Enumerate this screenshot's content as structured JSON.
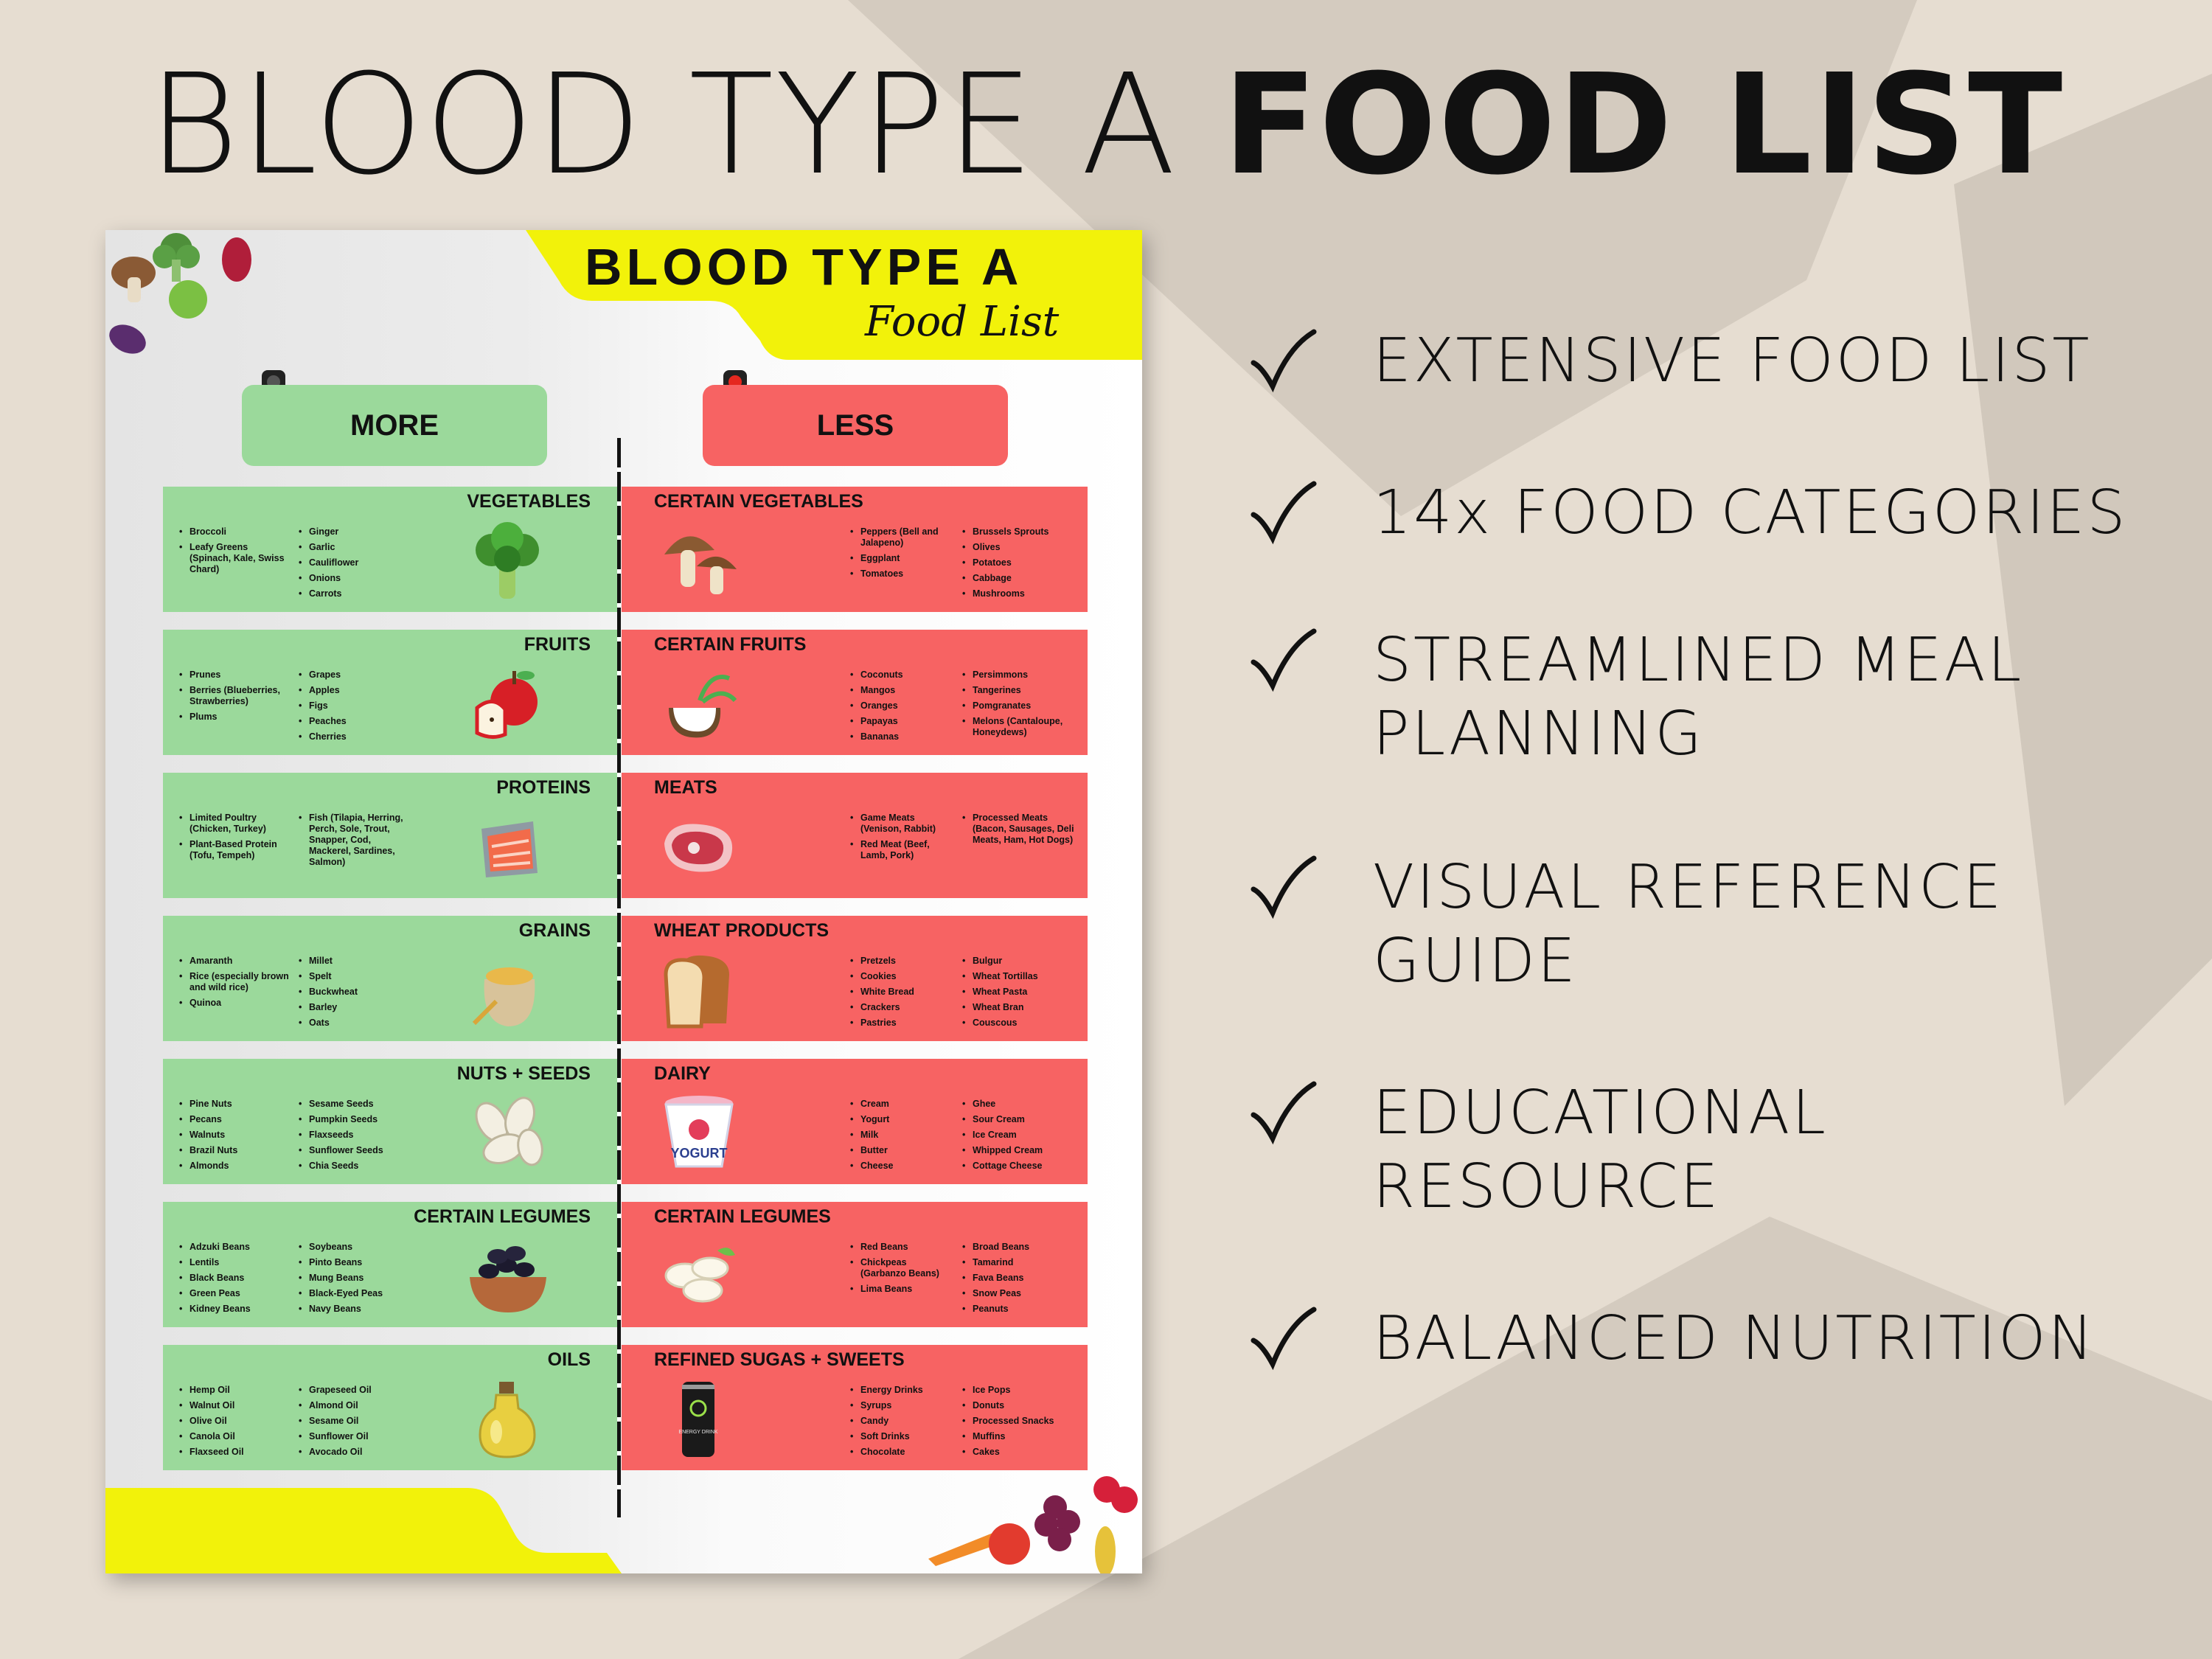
{
  "headline": {
    "light": "BLOOD TYPE A ",
    "bold": "FOOD LIST"
  },
  "poster": {
    "title": "BLOOD TYPE A",
    "subtitle": "Food List",
    "more_label": "MORE",
    "less_label": "LESS",
    "more": [
      {
        "title": "VEGETABLES",
        "icon": "broccoli-icon",
        "col1": [
          "Broccoli",
          "Leafy Greens (Spinach, Kale, Swiss Chard)"
        ],
        "col2": [
          "Ginger",
          "Garlic",
          "Cauliflower",
          "Onions",
          "Carrots"
        ]
      },
      {
        "title": "FRUITS",
        "icon": "apple-icon",
        "col1": [
          "Prunes",
          "Berries (Blueberries, Strawberries)",
          "Plums"
        ],
        "col2": [
          "Grapes",
          "Apples",
          "Figs",
          "Peaches",
          "Cherries"
        ]
      },
      {
        "title": "PROTEINS",
        "icon": "salmon-icon",
        "col1": [
          "Limited Poultry (Chicken, Turkey)",
          "Plant-Based Protein (Tofu, Tempeh)"
        ],
        "col2": [
          "Fish (Tilapia, Herring, Perch, Sole, Trout, Snapper, Cod, Mackerel, Sardines, Salmon)"
        ]
      },
      {
        "title": "GRAINS",
        "icon": "grain-sack-icon",
        "col1": [
          "Amaranth",
          "Rice (especially brown and wild rice)",
          "Quinoa"
        ],
        "col2": [
          "Millet",
          "Spelt",
          "Buckwheat",
          "Barley",
          "Oats"
        ]
      },
      {
        "title": "NUTS + SEEDS",
        "icon": "seeds-icon",
        "col1": [
          "Pine Nuts",
          "Pecans",
          "Walnuts",
          "Brazil Nuts",
          "Almonds"
        ],
        "col2": [
          "Sesame Seeds",
          "Pumpkin Seeds",
          "Flaxseeds",
          "Sunflower Seeds",
          "Chia Seeds"
        ]
      },
      {
        "title": "CERTAIN LEGUMES",
        "icon": "beans-bowl-icon",
        "col1": [
          "Adzuki Beans",
          "Lentils",
          "Black Beans",
          "Green Peas",
          "Kidney Beans"
        ],
        "col2": [
          "Soybeans",
          "Pinto Beans",
          "Mung Beans",
          "Black-Eyed Peas",
          "Navy Beans"
        ]
      },
      {
        "title": "OILS",
        "icon": "oil-bottle-icon",
        "col1": [
          "Hemp Oil",
          "Walnut Oil",
          "Olive Oil",
          "Canola Oil",
          "Flaxseed Oil"
        ],
        "col2": [
          "Grapeseed Oil",
          "Almond Oil",
          "Sesame Oil",
          "Sunflower Oil",
          "Avocado Oil"
        ]
      }
    ],
    "less": [
      {
        "title": "CERTAIN VEGETABLES",
        "icon": "mushroom-icon",
        "col1": [
          "Peppers (Bell and Jalapeno)",
          "Eggplant",
          "Tomatoes"
        ],
        "col2": [
          "Brussels Sprouts",
          "Olives",
          "Potatoes",
          "Cabbage",
          "Mushrooms"
        ]
      },
      {
        "title": "CERTAIN FRUITS",
        "icon": "coconut-icon",
        "col1": [
          "Coconuts",
          "Mangos",
          "Oranges",
          "Papayas",
          "Bananas"
        ],
        "col2": [
          "Persimmons",
          "Tangerines",
          "Pomgranates",
          "Melons (Cantaloupe, Honeydews)"
        ]
      },
      {
        "title": "MEATS",
        "icon": "steak-icon",
        "col1": [
          "Game Meats (Venison, Rabbit)",
          "Red Meat (Beef, Lamb, Pork)"
        ],
        "col2": [
          "Processed Meats (Bacon, Sausages, Deli Meats, Ham, Hot Dogs)"
        ]
      },
      {
        "title": "WHEAT PRODUCTS",
        "icon": "bread-icon",
        "col1": [
          "Pretzels",
          "Cookies",
          "White Bread",
          "Crackers",
          "Pastries"
        ],
        "col2": [
          "Bulgur",
          "Wheat Tortillas",
          "Wheat Pasta",
          "Wheat Bran",
          "Couscous"
        ]
      },
      {
        "title": "DAIRY",
        "icon": "yogurt-icon",
        "icon_text": "YOGURT",
        "col1": [
          "Cream",
          "Yogurt",
          "Milk",
          "Butter",
          "Cheese"
        ],
        "col2": [
          "Ghee",
          "Sour Cream",
          "Ice Cream",
          "Whipped Cream",
          "Cottage Cheese"
        ]
      },
      {
        "title": "CERTAIN LEGUMES",
        "icon": "white-beans-icon",
        "col1": [
          "Red Beans",
          "Chickpeas (Garbanzo Beans)",
          "Lima Beans"
        ],
        "col2": [
          "Broad Beans",
          "Tamarind",
          "Fava Beans",
          "Snow Peas",
          "Peanuts"
        ]
      },
      {
        "title": "REFINED SUGAS + SWEETS",
        "icon": "energy-drink-icon",
        "icon_text": "ENERGY DRINK",
        "col1": [
          "Energy Drinks",
          "Syrups",
          "Candy",
          "Soft Drinks",
          "Chocolate"
        ],
        "col2": [
          "Ice Pops",
          "Donuts",
          "Processed Snacks",
          "Muffins",
          "Cakes"
        ]
      }
    ]
  },
  "features": [
    "EXTENSIVE FOOD LIST",
    "14x FOOD CATEGORIES",
    "STREAMLINED MEAL PLANNING",
    "VISUAL REFERENCE GUIDE",
    "EDUCATIONAL RESOURCE",
    "BALANCED NUTRITION"
  ],
  "colors": {
    "background": "#e6ddd1",
    "more_green": "#9bd99b",
    "less_red": "#f76363",
    "accent_yellow": "#f2f20a"
  }
}
